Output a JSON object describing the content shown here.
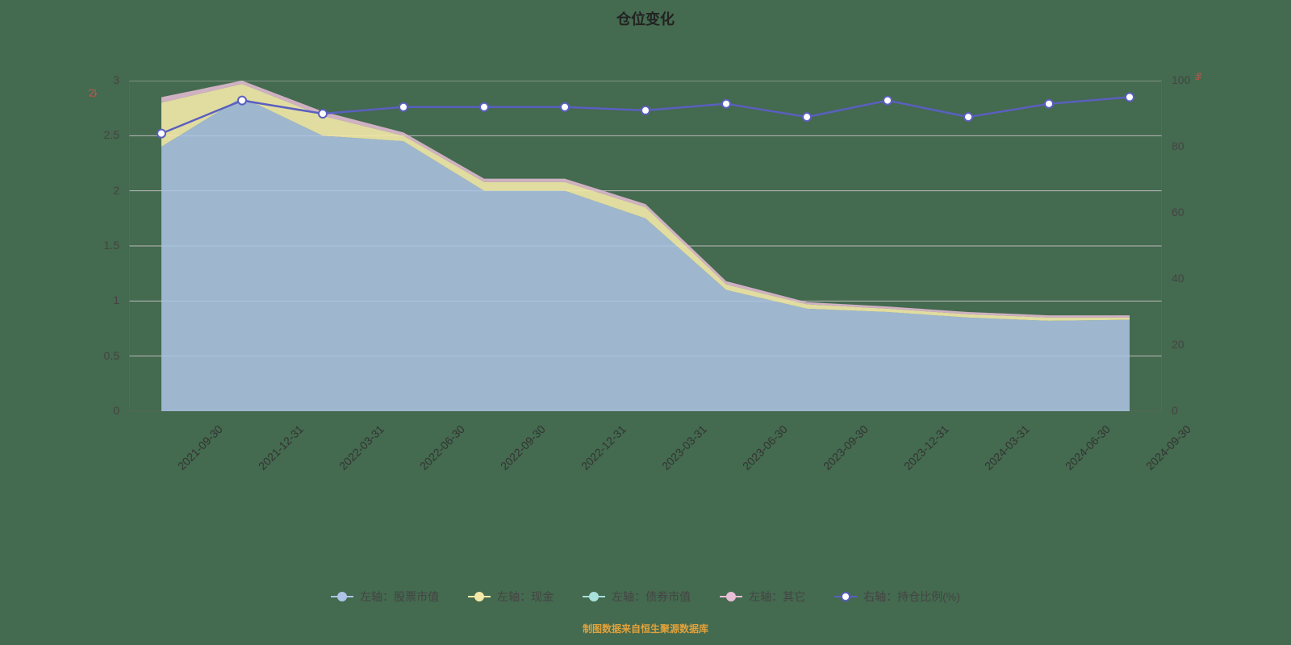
{
  "chart": {
    "type": "stacked-area-with-line",
    "title": "仓位变化",
    "title_fontsize": 18,
    "background_color": "#446a4f",
    "plot_bg": "transparent",
    "grid_color": "#bbbbbb",
    "axis_color": "#666666",
    "footer_text": "制图数据来自恒生聚源数据库",
    "footer_color": "#e2a23b",
    "left_axis": {
      "label": "亿",
      "label_color": "#d9534f",
      "min": 0,
      "max": 3,
      "step": 0.5,
      "ticks": [
        "0",
        "0.5",
        "1",
        "1.5",
        "2",
        "2.5",
        "3"
      ]
    },
    "right_axis": {
      "label": "%",
      "label_color": "#d9534f",
      "min": 0,
      "max": 100,
      "step": 20,
      "ticks": [
        "0",
        "20",
        "40",
        "60",
        "80",
        "100"
      ]
    },
    "categories": [
      "2021-09-30",
      "2021-12-31",
      "2022-03-31",
      "2022-06-30",
      "2022-09-30",
      "2022-12-31",
      "2023-03-31",
      "2023-06-30",
      "2023-09-30",
      "2023-12-31",
      "2024-03-31",
      "2024-06-30",
      "2024-09-30"
    ],
    "series": [
      {
        "key": "stock",
        "name": "左轴：股票市值",
        "color": "#aec4e5",
        "axis": "left",
        "kind": "area",
        "values": [
          2.4,
          2.85,
          2.5,
          2.45,
          2.0,
          2.0,
          1.75,
          1.1,
          0.93,
          0.9,
          0.85,
          0.82,
          0.83
        ]
      },
      {
        "key": "cash",
        "name": "左轴：现金",
        "color": "#f3e9a8",
        "axis": "left",
        "kind": "area",
        "values": [
          0.4,
          0.12,
          0.18,
          0.05,
          0.08,
          0.08,
          0.1,
          0.05,
          0.04,
          0.03,
          0.03,
          0.03,
          0.02
        ]
      },
      {
        "key": "bond",
        "name": "左轴：债券市值",
        "color": "#a8e0dd",
        "axis": "left",
        "kind": "area",
        "values": [
          0.0,
          0.0,
          0.0,
          0.0,
          0.0,
          0.0,
          0.0,
          0.0,
          0.0,
          0.0,
          0.0,
          0.0,
          0.0
        ]
      },
      {
        "key": "other",
        "name": "左轴：其它",
        "color": "#e8bdd6",
        "axis": "left",
        "kind": "area",
        "values": [
          0.05,
          0.03,
          0.04,
          0.03,
          0.03,
          0.03,
          0.03,
          0.03,
          0.02,
          0.02,
          0.02,
          0.02,
          0.02
        ]
      },
      {
        "key": "ratio",
        "name": "右轴：持仓比例(%)",
        "color": "#5a5fbf",
        "axis": "right",
        "kind": "line",
        "marker_fill": "#ffffff",
        "marker_stroke": "#5a5fbf",
        "marker_radius": 5,
        "values": [
          84,
          94,
          90,
          92,
          92,
          92,
          91,
          93,
          89,
          94,
          89,
          93,
          95
        ]
      }
    ],
    "legend_position": "bottom",
    "x_label_rotation": -45,
    "line_width": 2.5
  }
}
